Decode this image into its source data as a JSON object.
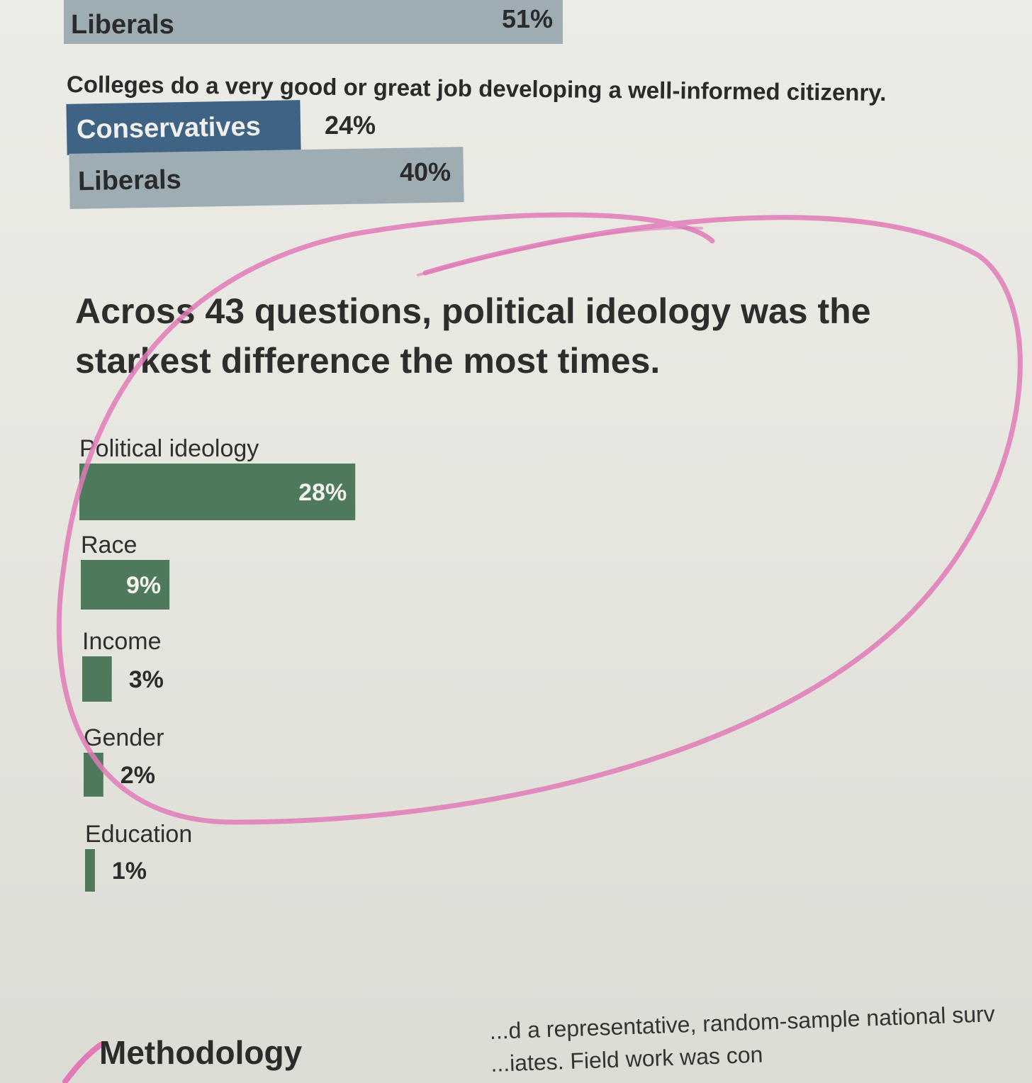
{
  "top_chart": {
    "rows_prev": [
      {
        "label": "Liberals",
        "value_text": "51%"
      }
    ],
    "caption": "Colleges do a very good or great job developing a well-informed citizenry.",
    "rows": [
      {
        "label": "Conservatives",
        "value_text": "24%"
      },
      {
        "label": "Liberals",
        "value_text": "40%"
      }
    ],
    "colors": {
      "conservatives": "#3f6384",
      "liberals": "#9eacb4"
    }
  },
  "headline": "Across 43 questions, political ideology was the starkest difference the most times.",
  "chart_data": {
    "type": "bar",
    "orientation": "horizontal",
    "categories": [
      "Political ideology",
      "Race",
      "Income",
      "Gender",
      "Education"
    ],
    "values": [
      28,
      9,
      3,
      2,
      1
    ],
    "value_labels": [
      "28%",
      "9%",
      "3%",
      "2%",
      "1%"
    ],
    "unit": "%",
    "title": "Across 43 questions, political ideology was the starkest difference the most times.",
    "color": "#4e7a5b"
  },
  "methodology": {
    "heading": "Methodology",
    "line1": "...d a representative, random-sample national surv",
    "line2": "...iates. Field work was con"
  },
  "annotation": {
    "ellipse_color": "#e07ab8"
  }
}
